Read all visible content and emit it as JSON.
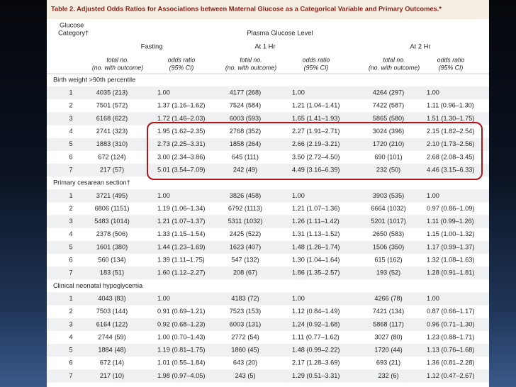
{
  "table": {
    "title": "Table 2. Adjusted Odds Ratios for Associations between Maternal Glucose as a Categorical Variable and Primary Outcomes.*",
    "category_header": [
      "Glucose",
      "Category†"
    ],
    "level_header": "Plasma Glucose Level",
    "groups": [
      {
        "name": "Fasting",
        "total": [
          "total no.",
          "(no. with outcome)"
        ],
        "odds": [
          "odds ratio",
          "(95% CI)"
        ]
      },
      {
        "name": "At 1 Hr",
        "total": [
          "total no.",
          "(no. with outcome)"
        ],
        "odds": [
          "odds ratio",
          "(95% CI)"
        ]
      },
      {
        "name": "At 2 Hr",
        "total": [
          "total no.",
          "(no. with outcome)"
        ],
        "odds": [
          "odds ratio",
          "(95% CI)"
        ]
      }
    ],
    "sections": [
      {
        "label": "Birth weight >90th percentile",
        "rows": [
          [
            "1",
            "4035 (213)",
            "1.00",
            "4177 (268)",
            "1.00",
            "4264 (297)",
            "1.00"
          ],
          [
            "2",
            "7501 (572)",
            "1.37 (1.16–1.62)",
            "7524 (584)",
            "1.21 (1.04–1.41)",
            "7422 (587)",
            "1.11 (0.96–1.30)"
          ],
          [
            "3",
            "6168 (622)",
            "1.72 (1.46–2.03)",
            "6003 (593)",
            "1.65 (1.41–1.93)",
            "5865 (580)",
            "1.51 (1.30–1.75)"
          ],
          [
            "4",
            "2741 (323)",
            "1.95 (1.62–2.35)",
            "2768 (352)",
            "2.27 (1.91–2.71)",
            "3024 (396)",
            "2.15 (1.82–2.54)"
          ],
          [
            "5",
            "1883 (310)",
            "2.73 (2.25–3.31)",
            "1858 (264)",
            "2.66 (2.19–3.21)",
            "1720 (210)",
            "2.10 (1.73–2.56)"
          ],
          [
            "6",
            "672 (124)",
            "3.00 (2.34–3.86)",
            "645 (111)",
            "3.50 (2.72–4.50)",
            "690 (101)",
            "2.68 (2.08–3.45)"
          ],
          [
            "7",
            "217 (57)",
            "5.01 (3.54–7.09)",
            "242 (49)",
            "4.49 (3.16–6.39)",
            "232 (50)",
            "4.46 (3.15–6.33)"
          ]
        ]
      },
      {
        "label": "Primary cesarean section†",
        "rows": [
          [
            "1",
            "3721 (495)",
            "1.00",
            "3826 (458)",
            "1.00",
            "3903 (535)",
            "1.00"
          ],
          [
            "2",
            "6806 (1151)",
            "1.19 (1.06–1.34)",
            "6792 (1113)",
            "1.21 (1.07–1.36)",
            "6664 (1032)",
            "0.97 (0.86–1.09)"
          ],
          [
            "3",
            "5483 (1014)",
            "1.21 (1.07–1.37)",
            "5311 (1032)",
            "1.26 (1.11–1.42)",
            "5201 (1017)",
            "1.11 (0.99–1.26)"
          ],
          [
            "4",
            "2378 (506)",
            "1.33 (1.15–1.54)",
            "2425 (522)",
            "1.31 (1.13–1.52)",
            "2650 (583)",
            "1.15 (1.00–1.32)"
          ],
          [
            "5",
            "1601 (380)",
            "1.44 (1.23–1.69)",
            "1623 (407)",
            "1.48 (1.26–1.74)",
            "1506 (350)",
            "1.17 (0.99–1.37)"
          ],
          [
            "6",
            "560 (134)",
            "1.39 (1.11–1.75)",
            "547 (132)",
            "1.30 (1.04–1.64)",
            "615 (162)",
            "1.32 (1.08–1.63)"
          ],
          [
            "7",
            "183 (51)",
            "1.60 (1.12–2.27)",
            "208 (67)",
            "1.86 (1.35–2.57)",
            "193 (52)",
            "1.28 (0.91–1.81)"
          ]
        ]
      },
      {
        "label": "Clinical neonatal hypoglycemia",
        "rows": [
          [
            "1",
            "4043 (83)",
            "1.00",
            "4183 (72)",
            "1.00",
            "4266 (78)",
            "1.00"
          ],
          [
            "2",
            "7503 (144)",
            "0.91 (0.69–1.21)",
            "7523 (153)",
            "1.12 (0.84–1.49)",
            "7421 (134)",
            "0.87 (0.66–1.17)"
          ],
          [
            "3",
            "6164 (122)",
            "0.92 (0.68–1.23)",
            "6003 (131)",
            "1.24 (0.92–1.68)",
            "5868 (117)",
            "0.96 (0.71–1.30)"
          ],
          [
            "4",
            "2744 (59)",
            "1.00 (0.70–1.43)",
            "2772 (54)",
            "1.11 (0.77–1.62)",
            "3027 (80)",
            "1.23 (0.88–1.71)"
          ],
          [
            "5",
            "1884 (48)",
            "1.19 (0.81–1.75)",
            "1860 (45)",
            "1.48 (0.99–2.22)",
            "1720 (44)",
            "1.13 (0.76–1.68)"
          ],
          [
            "6",
            "672 (14)",
            "1.01 (0.55–1.84)",
            "643 (20)",
            "2.17 (1.28–3.69)",
            "693 (21)",
            "1.36 (0.81–2.28)"
          ],
          [
            "7",
            "217 (10)",
            "1.98 (0.97–4.05)",
            "243 (5)",
            "1.29 (0.51–3.31)",
            "232 (6)",
            "1.12 (0.47–2.67)"
          ]
        ]
      }
    ]
  }
}
